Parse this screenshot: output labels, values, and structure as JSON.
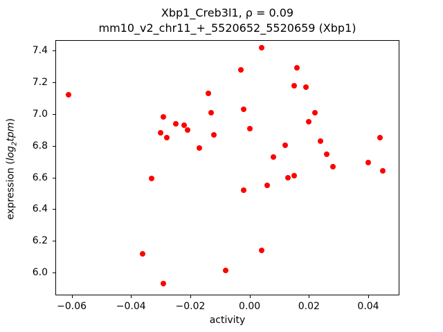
{
  "figure": {
    "title_line1": "Xbp1_Creb3l1, ρ = 0.09",
    "title_line2": "mm10_v2_chr11_+_5520652_5520659 (Xbp1)",
    "xlabel": "activity",
    "ylabel_pre": "expression (",
    "ylabel_log": "log",
    "ylabel_sub": "2",
    "ylabel_tpm": "tpm",
    "ylabel_post": ")"
  },
  "chart_data": {
    "type": "scatter",
    "title": "Xbp1_Creb3l1, ρ = 0.09\nmm10_v2_chr11_+_5520652_5520659 (Xbp1)",
    "xlabel": "activity",
    "ylabel": "expression (log2tpm)",
    "legend": "none",
    "grid": false,
    "marker": "circle",
    "marker_color": "#ff0000",
    "marker_size_px": 8,
    "xlim": [
      -0.0655,
      0.0505
    ],
    "ylim": [
      5.857,
      7.466
    ],
    "xticks": [
      -0.06,
      -0.04,
      -0.02,
      0.0,
      0.02,
      0.04
    ],
    "xtick_labels": [
      "−0.06",
      "−0.04",
      "−0.02",
      "0.00",
      "0.02",
      "0.04"
    ],
    "yticks": [
      6.0,
      6.2,
      6.4,
      6.6,
      6.8,
      7.0,
      7.2,
      7.4
    ],
    "ytick_labels": [
      "6.0",
      "6.2",
      "6.4",
      "6.6",
      "6.8",
      "7.0",
      "7.2",
      "7.4"
    ],
    "points": [
      [
        -0.061,
        7.12
      ],
      [
        -0.036,
        6.12
      ],
      [
        -0.033,
        6.595
      ],
      [
        -0.03,
        6.88
      ],
      [
        -0.029,
        6.98
      ],
      [
        -0.028,
        6.85
      ],
      [
        -0.029,
        5.93
      ],
      [
        -0.025,
        6.94
      ],
      [
        -0.022,
        6.93
      ],
      [
        -0.021,
        6.9
      ],
      [
        -0.017,
        6.785
      ],
      [
        -0.014,
        7.13
      ],
      [
        -0.013,
        7.01
      ],
      [
        -0.012,
        6.87
      ],
      [
        -0.008,
        6.015
      ],
      [
        -0.003,
        7.28
      ],
      [
        -0.002,
        7.03
      ],
      [
        -0.002,
        6.52
      ],
      [
        0.0,
        6.91
      ],
      [
        0.004,
        7.42
      ],
      [
        0.004,
        6.14
      ],
      [
        0.006,
        6.55
      ],
      [
        0.008,
        6.73
      ],
      [
        0.012,
        6.805
      ],
      [
        0.013,
        6.6
      ],
      [
        0.015,
        6.61
      ],
      [
        0.015,
        7.18
      ],
      [
        0.016,
        7.29
      ],
      [
        0.019,
        7.17
      ],
      [
        0.02,
        6.95
      ],
      [
        0.022,
        7.01
      ],
      [
        0.024,
        6.83
      ],
      [
        0.026,
        6.745
      ],
      [
        0.028,
        6.67
      ],
      [
        0.04,
        6.695
      ],
      [
        0.044,
        6.85
      ],
      [
        0.045,
        6.64
      ]
    ]
  }
}
